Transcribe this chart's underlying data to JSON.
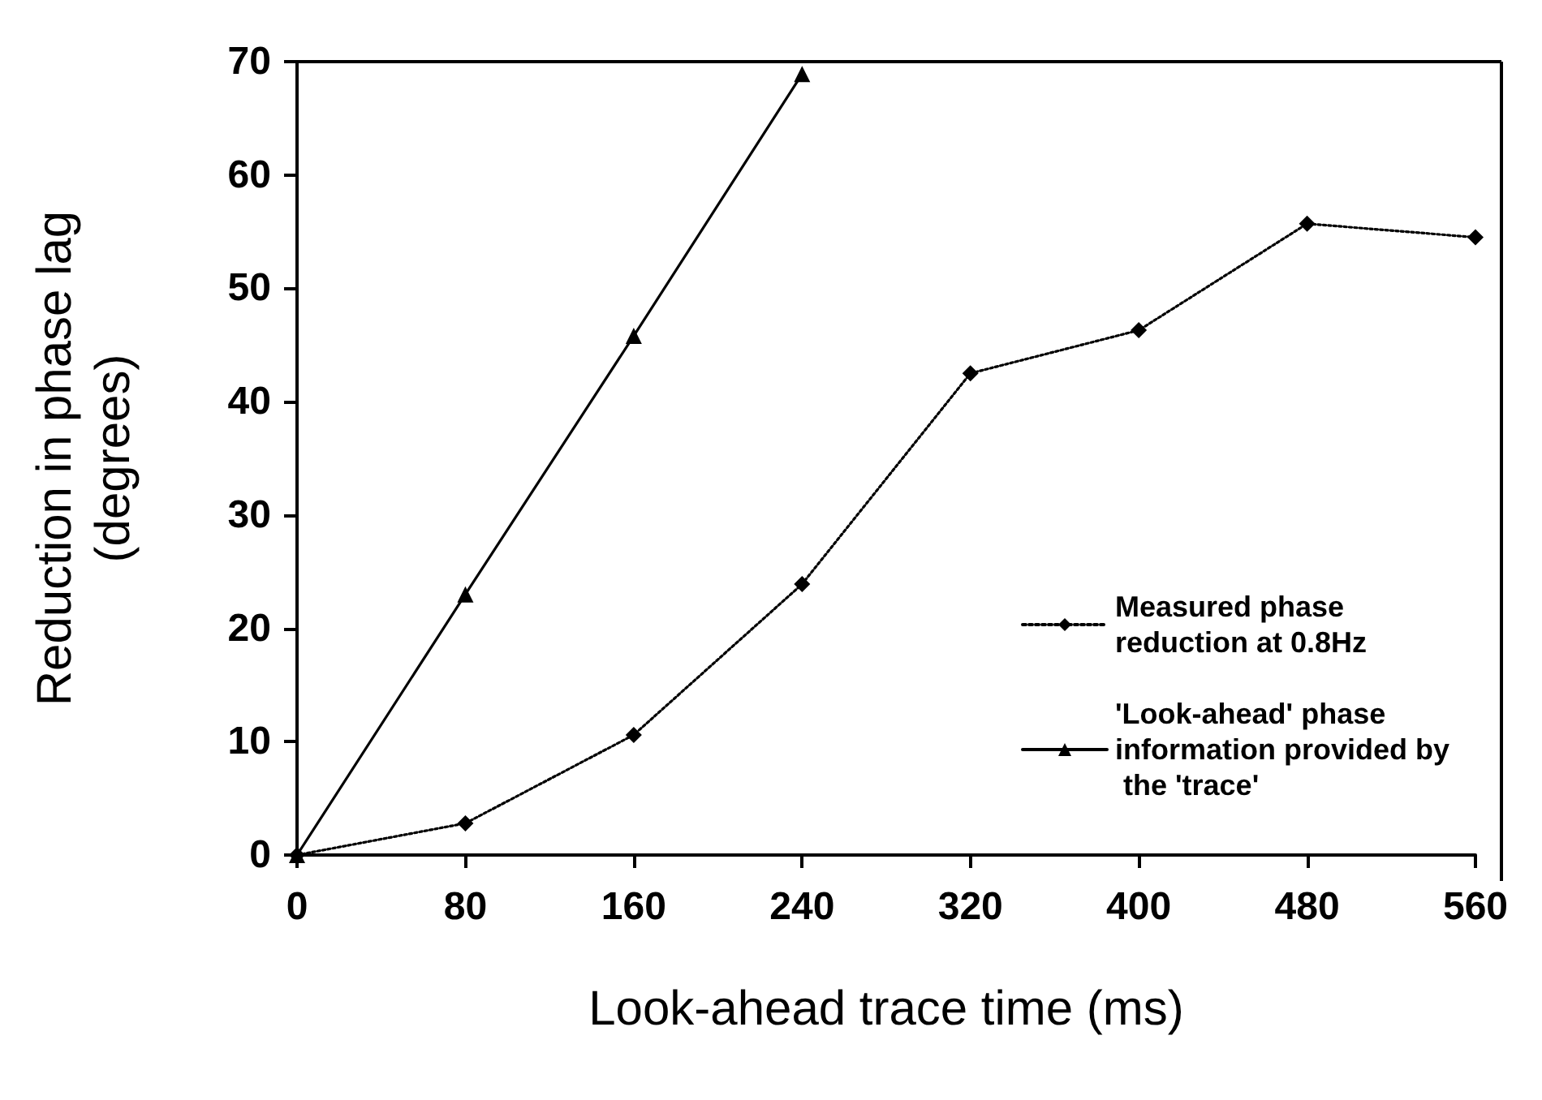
{
  "chart_data": {
    "type": "line",
    "xlabel": "Look-ahead trace time (ms)",
    "ylabel": "Reduction in phase lag\n(degrees)",
    "x": [
      0,
      80,
      160,
      240,
      320,
      400,
      480,
      560
    ],
    "series": [
      {
        "name": "Measured phase reduction at 0.8Hz",
        "color": "#000000",
        "marker": "diamond",
        "line_style": "dotted",
        "values": [
          0,
          2.8,
          10.6,
          23.9,
          42.5,
          46.3,
          55.7,
          54.5
        ]
      },
      {
        "name": "'Look-ahead' phase information provided by the 'trace'",
        "color": "#000000",
        "marker": "triangle",
        "line_style": "solid",
        "values": [
          0,
          23.0,
          45.8,
          68.9,
          null,
          null,
          null,
          null
        ]
      }
    ],
    "xlim": [
      0,
      560
    ],
    "xticks": [
      0,
      80,
      160,
      240,
      320,
      400,
      480,
      560
    ],
    "ylim": [
      0,
      70
    ],
    "yticks": [
      0,
      10,
      20,
      30,
      40,
      50,
      60,
      70
    ],
    "grid": false,
    "legend": "right"
  }
}
